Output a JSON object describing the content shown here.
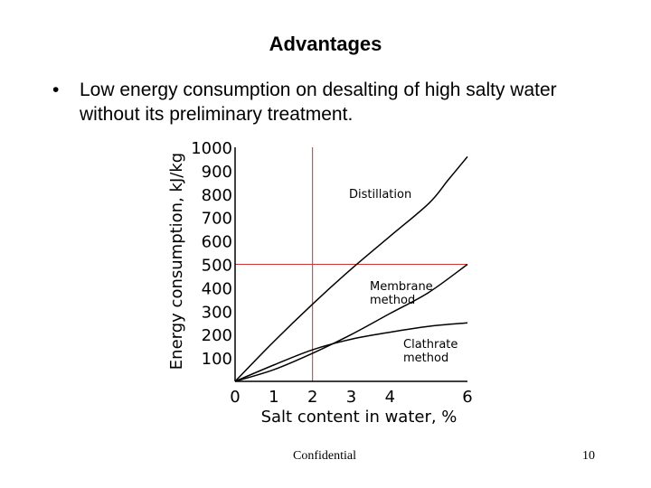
{
  "slide": {
    "title": "Advantages",
    "bullet_symbol": "•",
    "bullet_text": "Low energy consumption on desalting of high salty water without its preliminary treatment.",
    "footer_label": "Confidential",
    "page_number": "10"
  },
  "chart_data": {
    "type": "line",
    "xlabel": "Salt content in water, %",
    "ylabel": "Energy consumption, kJ/kg",
    "xlim": [
      0,
      6
    ],
    "ylim": [
      0,
      1000
    ],
    "x_ticks": [
      0,
      1,
      2,
      3,
      4,
      6
    ],
    "y_ticks": [
      100,
      200,
      300,
      400,
      500,
      600,
      700,
      800,
      900,
      1000
    ],
    "reference_lines": {
      "x": 2,
      "y": 500
    },
    "colors": {
      "curves": "#000000",
      "reference_lines": "#cc3333",
      "axes": "#000000"
    },
    "series": [
      {
        "name": "Distillation",
        "x": [
          0,
          1,
          2,
          3,
          4,
          5,
          5.5,
          6
        ],
        "y": [
          0,
          170,
          330,
          480,
          620,
          760,
          860,
          960
        ]
      },
      {
        "name": "Membrane method",
        "x": [
          0,
          1,
          2,
          3,
          4,
          5,
          6
        ],
        "y": [
          0,
          50,
          120,
          200,
          290,
          380,
          500
        ]
      },
      {
        "name": "Clathrate method",
        "x": [
          0,
          1,
          2,
          3,
          4,
          5,
          6
        ],
        "y": [
          0,
          70,
          135,
          180,
          210,
          235,
          250
        ]
      }
    ],
    "series_labels": [
      {
        "series": "Distillation",
        "lines": [
          "Distillation"
        ]
      },
      {
        "series": "Membrane method",
        "lines": [
          "Membrane",
          "method"
        ]
      },
      {
        "series": "Clathrate method",
        "lines": [
          "Clathrate",
          "method"
        ]
      }
    ]
  }
}
